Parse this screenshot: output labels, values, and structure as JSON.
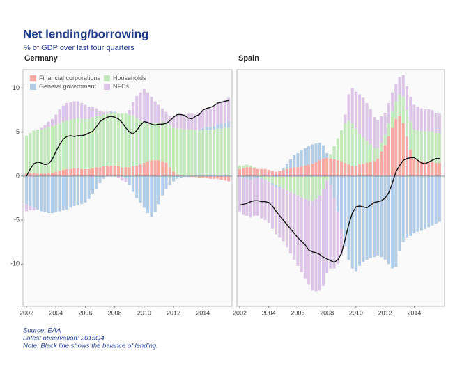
{
  "title": "Net lending/borrowing",
  "subtitle": "% of GDP over last four quarters",
  "notes": [
    "Source: EAA",
    "Latest observation: 2015Q4",
    "Note: Black line shows the balance of lending."
  ],
  "chart_data": [
    {
      "type": "bar",
      "stacked": true,
      "title": "Germany",
      "legend": "upper left",
      "x": [
        2002,
        2002.25,
        2002.5,
        2002.75,
        2003,
        2003.25,
        2003.5,
        2003.75,
        2004,
        2004.25,
        2004.5,
        2004.75,
        2005,
        2005.25,
        2005.5,
        2005.75,
        2006,
        2006.25,
        2006.5,
        2006.75,
        2007,
        2007.25,
        2007.5,
        2007.75,
        2008,
        2008.25,
        2008.5,
        2008.75,
        2009,
        2009.25,
        2009.5,
        2009.75,
        2010,
        2010.25,
        2010.5,
        2010.75,
        2011,
        2011.25,
        2011.5,
        2011.75,
        2012,
        2012.25,
        2012.5,
        2012.75,
        2013,
        2013.25,
        2013.5,
        2013.75,
        2014,
        2014.25,
        2014.5,
        2014.75,
        2015,
        2015.25,
        2015.5,
        2015.75
      ],
      "xlim": [
        2001.76,
        2015.98
      ],
      "xticks": [
        2002,
        2004,
        2006,
        2008,
        2010,
        2012,
        2014
      ],
      "ylim": [
        -14.8,
        12.1
      ],
      "yticks": [
        -10,
        -5,
        0,
        5,
        10
      ],
      "series": [
        {
          "name": "Financial corporations",
          "color": "#f6a8a2",
          "values": [
            0.3,
            0.4,
            0.4,
            0.3,
            0.3,
            0.3,
            0.4,
            0.4,
            0.5,
            0.6,
            0.7,
            0.8,
            0.8,
            0.9,
            0.9,
            0.8,
            0.8,
            0.8,
            0.9,
            1.0,
            1.0,
            1.1,
            1.2,
            1.2,
            1.2,
            1.1,
            1.0,
            1.0,
            1.0,
            1.1,
            1.2,
            1.3,
            1.5,
            1.7,
            1.8,
            1.8,
            1.8,
            1.7,
            1.5,
            1.0,
            0.5,
            0.2,
            0.1,
            0.0,
            0.0,
            -0.1,
            -0.1,
            -0.2,
            -0.2,
            -0.2,
            -0.3,
            -0.3,
            -0.3,
            -0.4,
            -0.5,
            -0.6
          ]
        },
        {
          "name": "Households",
          "color": "#c2e8bc",
          "values": [
            4.3,
            4.5,
            4.8,
            5.0,
            5.0,
            5.1,
            5.2,
            5.3,
            5.3,
            5.4,
            5.5,
            5.5,
            5.6,
            5.6,
            5.7,
            5.7,
            5.7,
            5.7,
            5.8,
            5.8,
            5.8,
            5.9,
            5.9,
            6.0,
            6.0,
            6.0,
            6.1,
            6.1,
            6.0,
            5.8,
            5.4,
            5.0,
            4.6,
            4.3,
            4.2,
            4.2,
            4.3,
            4.5,
            4.6,
            4.8,
            5.0,
            5.2,
            5.3,
            5.3,
            5.3,
            5.3,
            5.2,
            5.2,
            5.2,
            5.3,
            5.3,
            5.3,
            5.4,
            5.4,
            5.5,
            5.5
          ]
        },
        {
          "name": "General government",
          "color": "#b3cde6",
          "values": [
            -3.2,
            -3.4,
            -3.6,
            -3.8,
            -4.0,
            -4.1,
            -4.2,
            -4.2,
            -4.1,
            -4.0,
            -3.9,
            -3.8,
            -3.6,
            -3.4,
            -3.3,
            -3.2,
            -3.0,
            -2.6,
            -2.0,
            -1.5,
            -0.8,
            -0.3,
            0.0,
            0.1,
            0.1,
            0.0,
            -0.1,
            -0.2,
            -1.0,
            -1.8,
            -2.5,
            -3.0,
            -3.6,
            -4.2,
            -4.6,
            -4.1,
            -3.2,
            -2.2,
            -1.5,
            -1.0,
            -0.6,
            -0.3,
            -0.2,
            -0.1,
            -0.1,
            0.0,
            0.0,
            0.1,
            0.2,
            0.3,
            0.3,
            0.4,
            0.5,
            0.6,
            0.6,
            0.7
          ]
        },
        {
          "name": "NFCs",
          "color": "#dcc5e6",
          "values": [
            -0.8,
            -0.5,
            -0.3,
            0.0,
            0.2,
            0.4,
            0.6,
            0.8,
            1.2,
            1.6,
            1.8,
            2.0,
            2.0,
            2.0,
            1.9,
            1.8,
            1.6,
            1.4,
            1.2,
            0.9,
            0.6,
            0.3,
            0.2,
            0.1,
            0.0,
            -0.2,
            -0.4,
            -0.5,
            0.5,
            1.5,
            2.5,
            3.2,
            3.8,
            3.5,
            3.0,
            2.5,
            2.0,
            1.5,
            1.2,
            1.0,
            1.2,
            1.5,
            1.6,
            1.7,
            1.8,
            1.8,
            1.8,
            1.9,
            2.0,
            2.0,
            2.1,
            2.2,
            2.3,
            2.5,
            2.6,
            2.7
          ]
        },
        {
          "type": "line",
          "color": "#111111",
          "values": [
            0.0,
            0.8,
            1.4,
            1.6,
            1.5,
            1.3,
            1.4,
            1.9,
            2.8,
            3.6,
            4.2,
            4.5,
            4.6,
            4.5,
            4.6,
            4.6,
            4.7,
            4.9,
            5.1,
            5.6,
            6.2,
            6.5,
            6.7,
            6.8,
            6.7,
            6.5,
            6.1,
            5.5,
            5.0,
            4.8,
            5.2,
            5.8,
            6.2,
            6.1,
            5.9,
            5.8,
            5.9,
            5.9,
            6.0,
            6.3,
            6.7,
            7.0,
            7.0,
            6.9,
            6.6,
            6.5,
            6.8,
            7.0,
            7.5,
            7.7,
            7.8,
            8.0,
            8.3,
            8.4,
            8.5,
            8.6
          ]
        }
      ]
    },
    {
      "type": "bar",
      "stacked": true,
      "title": "Spain",
      "x": [
        2002,
        2002.25,
        2002.5,
        2002.75,
        2003,
        2003.25,
        2003.5,
        2003.75,
        2004,
        2004.25,
        2004.5,
        2004.75,
        2005,
        2005.25,
        2005.5,
        2005.75,
        2006,
        2006.25,
        2006.5,
        2006.75,
        2007,
        2007.25,
        2007.5,
        2007.75,
        2008,
        2008.25,
        2008.5,
        2008.75,
        2009,
        2009.25,
        2009.5,
        2009.75,
        2010,
        2010.25,
        2010.5,
        2010.75,
        2011,
        2011.25,
        2011.5,
        2011.75,
        2012,
        2012.25,
        2012.5,
        2012.75,
        2013,
        2013.25,
        2013.5,
        2013.75,
        2014,
        2014.25,
        2014.5,
        2014.75,
        2015,
        2015.25,
        2015.5,
        2015.75
      ],
      "xlim": [
        2001.81,
        2016.09
      ],
      "xticks": [
        2002,
        2004,
        2006,
        2008,
        2010,
        2012,
        2014
      ],
      "ylim": [
        -14.8,
        12.1
      ],
      "series": [
        {
          "color": "#f6a8a2",
          "values": [
            0.8,
            0.9,
            1.0,
            1.0,
            0.9,
            0.8,
            0.8,
            0.8,
            0.7,
            0.6,
            0.5,
            0.6,
            0.7,
            0.8,
            0.9,
            1.0,
            1.0,
            1.1,
            1.2,
            1.3,
            1.4,
            1.6,
            1.8,
            2.0,
            2.1,
            2.0,
            1.9,
            1.8,
            1.7,
            1.5,
            1.3,
            1.2,
            1.2,
            1.3,
            1.4,
            1.5,
            1.6,
            1.7,
            2.0,
            2.8,
            3.5,
            4.5,
            5.5,
            6.5,
            6.8,
            6.0,
            4.5,
            3.0,
            2.0,
            1.8,
            1.7,
            1.6,
            1.6,
            1.6,
            1.5,
            1.5
          ]
        },
        {
          "color": "#c2e8bc",
          "values": [
            0.4,
            0.3,
            0.3,
            0.2,
            0.1,
            0.0,
            -0.2,
            -0.4,
            -0.6,
            -0.8,
            -1.0,
            -1.2,
            -1.4,
            -1.6,
            -1.8,
            -2.0,
            -2.2,
            -2.4,
            -2.6,
            -2.7,
            -2.8,
            -2.6,
            -2.2,
            -1.5,
            -0.5,
            0.5,
            1.5,
            2.5,
            3.5,
            4.5,
            5.0,
            4.8,
            4.2,
            3.5,
            3.0,
            2.5,
            2.0,
            1.5,
            1.2,
            1.0,
            1.2,
            1.5,
            1.8,
            2.0,
            2.5,
            3.0,
            3.0,
            3.2,
            3.3,
            3.4,
            3.4,
            3.5,
            3.5,
            3.5,
            3.4,
            3.4
          ]
        },
        {
          "color": "#b3cde6",
          "values": [
            0.0,
            -0.2,
            -0.3,
            -0.4,
            -0.3,
            -0.2,
            -0.1,
            0.0,
            0.0,
            -0.2,
            -0.3,
            -0.2,
            0.2,
            0.6,
            1.0,
            1.4,
            1.6,
            1.8,
            2.0,
            2.1,
            2.2,
            2.1,
            2.0,
            1.5,
            0.5,
            -1.0,
            -2.5,
            -4.0,
            -6.0,
            -8.0,
            -9.5,
            -10.5,
            -10.8,
            -10.2,
            -9.8,
            -9.5,
            -9.3,
            -9.2,
            -9.0,
            -9.2,
            -9.5,
            -10.0,
            -10.5,
            -10.3,
            -8.5,
            -7.5,
            -7.0,
            -6.8,
            -6.5,
            -6.3,
            -6.2,
            -6.0,
            -5.8,
            -5.6,
            -5.4,
            -5.2
          ]
        },
        {
          "color": "#dcc5e6",
          "values": [
            -4.0,
            -4.2,
            -4.2,
            -4.3,
            -4.2,
            -4.3,
            -4.5,
            -4.6,
            -4.7,
            -5.0,
            -5.3,
            -5.6,
            -6.0,
            -6.5,
            -7.0,
            -7.5,
            -8.0,
            -8.5,
            -9.0,
            -9.6,
            -10.2,
            -10.5,
            -10.8,
            -11.0,
            -10.5,
            -9.5,
            -8.0,
            -6.0,
            -3.0,
            1.0,
            3.0,
            4.0,
            4.2,
            4.5,
            4.5,
            4.3,
            4.0,
            3.5,
            3.2,
            3.0,
            2.5,
            2.3,
            2.2,
            2.0,
            2.0,
            2.5,
            2.7,
            2.8,
            2.8,
            2.7,
            2.6,
            2.5,
            2.5,
            2.4,
            2.3,
            2.2
          ]
        },
        {
          "type": "line",
          "color": "#111111",
          "values": [
            -3.3,
            -3.2,
            -3.1,
            -2.9,
            -2.8,
            -2.8,
            -2.9,
            -2.9,
            -3.0,
            -3.4,
            -4.0,
            -4.5,
            -5.0,
            -5.5,
            -6.0,
            -6.5,
            -7.0,
            -7.4,
            -7.8,
            -8.4,
            -8.6,
            -8.7,
            -8.9,
            -9.2,
            -9.4,
            -9.6,
            -9.8,
            -9.5,
            -8.8,
            -7.2,
            -5.5,
            -4.2,
            -3.5,
            -3.4,
            -3.5,
            -3.6,
            -3.3,
            -3.0,
            -2.9,
            -2.8,
            -2.5,
            -1.9,
            -0.8,
            0.5,
            1.2,
            1.8,
            2.0,
            2.1,
            2.1,
            1.8,
            1.5,
            1.4,
            1.6,
            1.8,
            2.0,
            2.0
          ]
        }
      ]
    }
  ]
}
